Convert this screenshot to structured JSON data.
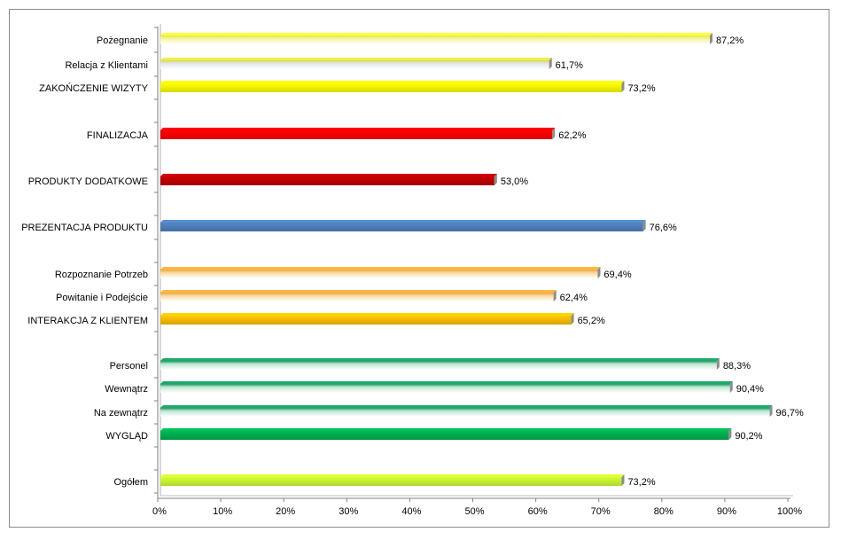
{
  "chart_data": {
    "type": "bar",
    "orientation": "horizontal",
    "xlim": [
      0,
      100
    ],
    "x_ticks": [
      "0%",
      "10%",
      "20%",
      "30%",
      "40%",
      "50%",
      "60%",
      "70%",
      "80%",
      "90%",
      "100%"
    ],
    "grid": false,
    "legend": "none",
    "categories": [
      {
        "label": "Pożegnanie",
        "value": 87.2,
        "value_label": "87,2%",
        "color": "#f3f3a0",
        "style": "sub"
      },
      {
        "label": "Relacja z Klientami",
        "value": 61.7,
        "value_label": "61,7%",
        "color": "#dfe6ee",
        "style": "sub"
      },
      {
        "label": "ZAKOŃCZENIE WIZYTY",
        "value": 73.2,
        "value_label": "73,2%",
        "color": "#ffff00",
        "style": "main"
      },
      {
        "label": "FINALIZACJA",
        "value": 62.2,
        "value_label": "62,2%",
        "color": "#ff0000",
        "style": "main"
      },
      {
        "label": "PRODUKTY DODATKOWE",
        "value": 53.0,
        "value_label": "53,0%",
        "color": "#c00000",
        "style": "main"
      },
      {
        "label": "PREZENTACJA PRODUKTU",
        "value": 76.6,
        "value_label": "76,6%",
        "color": "#4f81bd",
        "style": "main"
      },
      {
        "label": "Rozpoznanie Potrzeb",
        "value": 69.4,
        "value_label": "69,4%",
        "color": "#fbd8a0",
        "style": "sub"
      },
      {
        "label": "Powitanie i Podejście",
        "value": 62.4,
        "value_label": "62,4%",
        "color": "#fbd8a0",
        "style": "sub"
      },
      {
        "label": "INTERAKCJA Z KLIENTEM",
        "value": 65.2,
        "value_label": "65,2%",
        "color": "#ffc000",
        "style": "main"
      },
      {
        "label": "Personel",
        "value": 88.3,
        "value_label": "88,3%",
        "color": "#bfe8d4",
        "style": "sub"
      },
      {
        "label": "Wewnątrz",
        "value": 90.4,
        "value_label": "90,4%",
        "color": "#bfe8d4",
        "style": "sub"
      },
      {
        "label": "Na zewnątrz",
        "value": 96.7,
        "value_label": "96,7%",
        "color": "#bfe8d4",
        "style": "sub"
      },
      {
        "label": "WYGLĄD",
        "value": 90.2,
        "value_label": "90,2%",
        "color": "#00b050",
        "style": "main"
      },
      {
        "label": "Ogółem",
        "value": 73.2,
        "value_label": "73,2%",
        "color": "#ccff33",
        "style": "main"
      }
    ],
    "sub_top_colors": [
      "#e8e83a",
      "#d9d944",
      "#e8a63a",
      "#e8a63a",
      "#1a9a60",
      "#1a9a60",
      "#1a9a60"
    ]
  }
}
